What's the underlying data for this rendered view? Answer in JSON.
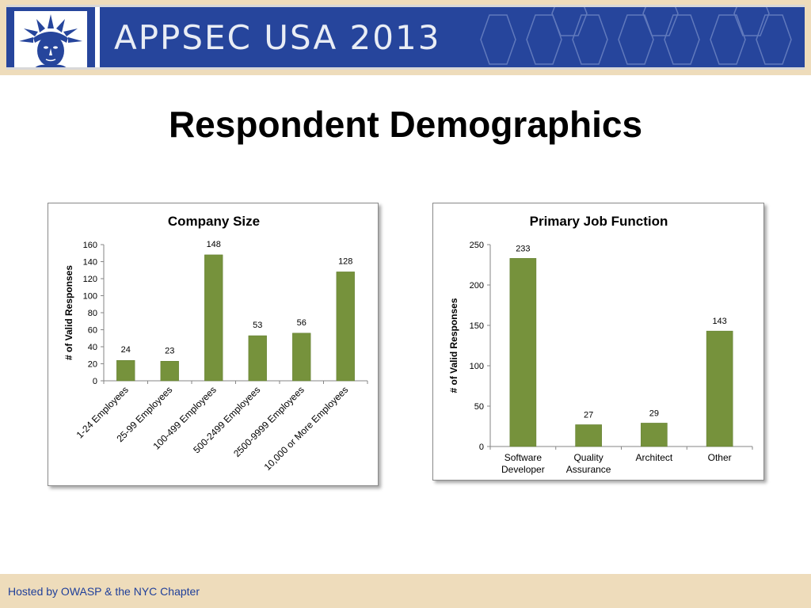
{
  "header": {
    "banner_title": "APPSEC USA 2013",
    "logo_icon": "statue-of-liberty-icon",
    "banner_color": "#26459c",
    "band_color": "#eedcbb"
  },
  "slide": {
    "title": "Respondent Demographics"
  },
  "footer": {
    "text": "Hosted by OWASP & the NYC Chapter"
  },
  "chart_data": [
    {
      "type": "bar",
      "title": "Company Size",
      "xlabel": "",
      "ylabel": "# of Valid Responses",
      "categories": [
        "1-24 Employees",
        "25-99 Employees",
        "100-499 Employees",
        "500-2499 Employees",
        "2500-9999 Employees",
        "10,000 or More Employees"
      ],
      "values": [
        24,
        23,
        148,
        53,
        56,
        128
      ],
      "ylim": [
        0,
        160
      ],
      "yticks": [
        0,
        20,
        40,
        60,
        80,
        100,
        120,
        140,
        160
      ],
      "bar_color": "#76923c",
      "grid": false,
      "legend": "none",
      "category_label_rotation": -45
    },
    {
      "type": "bar",
      "title": "Primary Job Function",
      "xlabel": "",
      "ylabel": "# of Valid Responses",
      "categories": [
        [
          "Software",
          "Developer"
        ],
        [
          "Quality",
          "Assurance"
        ],
        [
          "Architect"
        ],
        [
          "Other"
        ]
      ],
      "values": [
        233,
        27,
        29,
        143
      ],
      "ylim": [
        0,
        250
      ],
      "yticks": [
        0,
        50,
        100,
        150,
        200,
        250
      ],
      "bar_color": "#76923c",
      "grid": false,
      "legend": "none",
      "category_label_rotation": 0
    }
  ]
}
